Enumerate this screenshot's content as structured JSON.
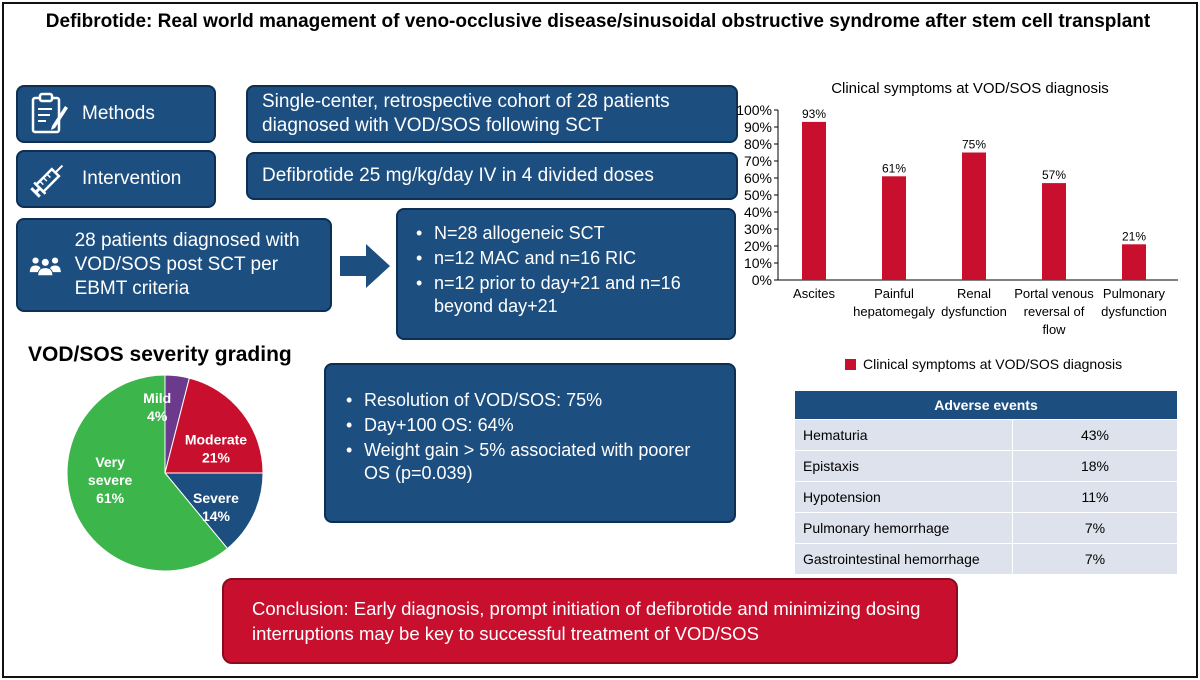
{
  "title": "Defibrotide: Real world management of veno-occlusive disease/sinusoidal obstructive syndrome after stem cell transplant",
  "labels": {
    "methods": "Methods",
    "intervention": "Intervention"
  },
  "icons": {
    "methods": "clipboard-icon",
    "intervention": "syringe-icon",
    "patients": "group-people-icon",
    "arrow": "arrow-right-icon"
  },
  "methods_text": "Single-center, retrospective cohort of 28 patients diagnosed with VOD/SOS following SCT",
  "intervention_text": "Defibrotide 25 mg/kg/day IV in 4 divided doses",
  "patients_text": "28 patients diagnosed with VOD/SOS post SCT per EBMT criteria",
  "cohort_bullets": [
    "N=28 allogeneic SCT",
    "n=12 MAC and n=16 RIC",
    "n=12 prior to day+21 and n=16 beyond day+21"
  ],
  "outcome_bullets": [
    "Resolution of VOD/SOS: 75%",
    "Day+100 OS: 64%",
    "Weight gain > 5% associated with poorer OS (p=0.039)"
  ],
  "severity": {
    "title": "VOD/SOS severity grading",
    "slices": [
      {
        "name": "Mild",
        "pct": 4,
        "label": "4%",
        "color": "#6b3a8c"
      },
      {
        "name": "Moderate",
        "pct": 21,
        "label": "21%",
        "color": "#c8102e"
      },
      {
        "name": "Severe",
        "pct": 14,
        "label": "14%",
        "color": "#1c4e80"
      },
      {
        "name": "Very severe",
        "pct": 61,
        "label": "61%",
        "color": "#3cb54a"
      }
    ]
  },
  "chart_data": {
    "type": "bar",
    "title": "Clinical symptoms at VOD/SOS diagnosis",
    "categories": [
      "Ascites",
      "Painful hepatomegaly",
      "Renal dysfunction",
      "Portal venous reversal of flow",
      "Pulmonary dysfunction"
    ],
    "category_lines": [
      [
        "Ascites"
      ],
      [
        "Painful",
        "hepatomegaly"
      ],
      [
        "Renal",
        "dysfunction"
      ],
      [
        "Portal venous",
        "reversal of",
        "flow"
      ],
      [
        "Pulmonary",
        "dysfunction"
      ]
    ],
    "values": [
      93,
      61,
      75,
      57,
      21
    ],
    "value_labels": [
      "93%",
      "61%",
      "75%",
      "57%",
      "21%"
    ],
    "ylim": [
      0,
      100
    ],
    "yticks": [
      "0%",
      "10%",
      "20%",
      "30%",
      "40%",
      "50%",
      "60%",
      "70%",
      "80%",
      "90%",
      "100%"
    ],
    "legend": "Clinical symptoms at VOD/SOS diagnosis",
    "color": "#c8102e"
  },
  "adverse_events": {
    "header": "Adverse events",
    "rows": [
      {
        "name": "Hematuria",
        "value": "43%"
      },
      {
        "name": "Epistaxis",
        "value": "18%"
      },
      {
        "name": "Hypotension",
        "value": "11%"
      },
      {
        "name": "Pulmonary hemorrhage",
        "value": "7%"
      },
      {
        "name": "Gastrointestinal hemorrhage",
        "value": "7%"
      }
    ]
  },
  "conclusion": "Conclusion: Early diagnosis, prompt initiation of defibrotide and minimizing dosing interruptions may be key to successful treatment of VOD/SOS"
}
